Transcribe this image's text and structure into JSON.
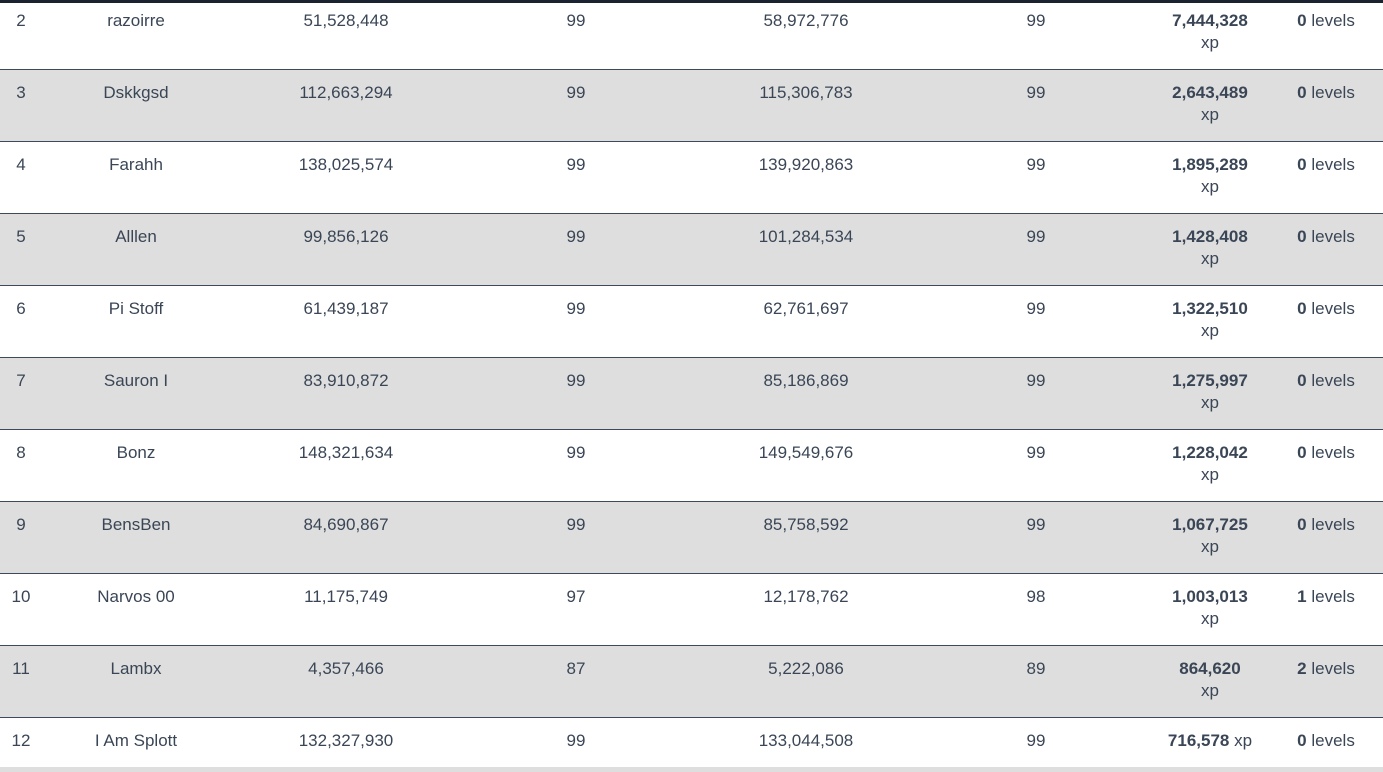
{
  "colors": {
    "row_alt": "#dedede",
    "row_border": "#3d4a5c",
    "text": "#3a4656",
    "top_rule": "#1c2330"
  },
  "rows": [
    {
      "rank": "2",
      "name": "razoirre",
      "xp_a": "51,528,448",
      "level_a": "99",
      "xp_b": "58,972,776",
      "level_b": "99",
      "diff_xp": "7,444,328",
      "diff_unit": "xp",
      "level_diff": "0",
      "level_unit": "levels"
    },
    {
      "rank": "3",
      "name": "Dskkgsd",
      "xp_a": "112,663,294",
      "level_a": "99",
      "xp_b": "115,306,783",
      "level_b": "99",
      "diff_xp": "2,643,489",
      "diff_unit": "xp",
      "level_diff": "0",
      "level_unit": "levels"
    },
    {
      "rank": "4",
      "name": "Farahh",
      "xp_a": "138,025,574",
      "level_a": "99",
      "xp_b": "139,920,863",
      "level_b": "99",
      "diff_xp": "1,895,289",
      "diff_unit": "xp",
      "level_diff": "0",
      "level_unit": "levels"
    },
    {
      "rank": "5",
      "name": "Alllen",
      "xp_a": "99,856,126",
      "level_a": "99",
      "xp_b": "101,284,534",
      "level_b": "99",
      "diff_xp": "1,428,408",
      "diff_unit": "xp",
      "level_diff": "0",
      "level_unit": "levels"
    },
    {
      "rank": "6",
      "name": "Pi Stoff",
      "xp_a": "61,439,187",
      "level_a": "99",
      "xp_b": "62,761,697",
      "level_b": "99",
      "diff_xp": "1,322,510",
      "diff_unit": "xp",
      "level_diff": "0",
      "level_unit": "levels"
    },
    {
      "rank": "7",
      "name": "Sauron I",
      "xp_a": "83,910,872",
      "level_a": "99",
      "xp_b": "85,186,869",
      "level_b": "99",
      "diff_xp": "1,275,997",
      "diff_unit": "xp",
      "level_diff": "0",
      "level_unit": "levels"
    },
    {
      "rank": "8",
      "name": "Bonz",
      "xp_a": "148,321,634",
      "level_a": "99",
      "xp_b": "149,549,676",
      "level_b": "99",
      "diff_xp": "1,228,042",
      "diff_unit": "xp",
      "level_diff": "0",
      "level_unit": "levels"
    },
    {
      "rank": "9",
      "name": "BensBen",
      "xp_a": "84,690,867",
      "level_a": "99",
      "xp_b": "85,758,592",
      "level_b": "99",
      "diff_xp": "1,067,725",
      "diff_unit": "xp",
      "level_diff": "0",
      "level_unit": "levels"
    },
    {
      "rank": "10",
      "name": "Narvos 00",
      "xp_a": "11,175,749",
      "level_a": "97",
      "xp_b": "12,178,762",
      "level_b": "98",
      "diff_xp": "1,003,013",
      "diff_unit": "xp",
      "level_diff": "1",
      "level_unit": "levels"
    },
    {
      "rank": "11",
      "name": "Lambx",
      "xp_a": "4,357,466",
      "level_a": "87",
      "xp_b": "5,222,086",
      "level_b": "89",
      "diff_xp": "864,620",
      "diff_unit": "xp",
      "level_diff": "2",
      "level_unit": "levels"
    },
    {
      "rank": "12",
      "name": "I Am Splott",
      "xp_a": "132,327,930",
      "level_a": "99",
      "xp_b": "133,044,508",
      "level_b": "99",
      "diff_xp": "716,578",
      "diff_unit": "xp",
      "level_diff": "0",
      "level_unit": "levels"
    }
  ]
}
